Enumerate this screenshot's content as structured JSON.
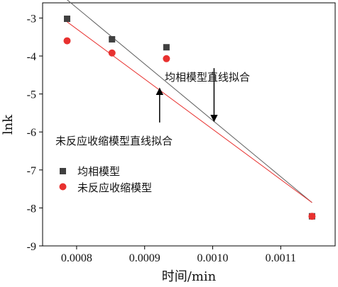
{
  "chart_data": {
    "type": "scatter",
    "xlabel": "时间/min",
    "ylabel": "lnk",
    "xlim": [
      0.00075,
      0.00118
    ],
    "ylim": [
      -9,
      -2.6
    ],
    "xticks": [
      0.0008,
      0.0009,
      0.001,
      0.0011
    ],
    "xtick_labels": [
      "0.0008",
      "0.0009",
      "0.0010",
      "0.0011"
    ],
    "yticks": [
      -9,
      -8,
      -7,
      -6,
      -5,
      -4,
      -3
    ],
    "ytick_labels": [
      "-9",
      "-8",
      "-7",
      "-6",
      "-5",
      "-4",
      "-3"
    ],
    "grid": false,
    "legend_position": "lower-left",
    "series": [
      {
        "name": "均相模型",
        "marker": "square",
        "color": "#404040",
        "x": [
          0.000786,
          0.000852,
          0.000932,
          0.001146
        ],
        "y": [
          -3.02,
          -3.56,
          -3.77,
          -8.22
        ]
      },
      {
        "name": "未反应收缩模型",
        "marker": "circle",
        "color": "#e8312f",
        "x": [
          0.000786,
          0.000852,
          0.000932,
          0.001146
        ],
        "y": [
          -3.6,
          -3.92,
          -4.07,
          -8.22
        ]
      }
    ],
    "fit_lines": [
      {
        "series": "均相模型",
        "color": "#606060",
        "x": [
          0.000786,
          0.001146
        ],
        "y": [
          -2.52,
          -7.86
        ]
      },
      {
        "series": "未反应收缩模型",
        "color": "#e8312f",
        "x": [
          0.000786,
          0.001146
        ],
        "y": [
          -3.1,
          -7.86
        ]
      }
    ],
    "annotations": [
      {
        "text": "均相模型直线拟合",
        "arrow_x": 0.001002,
        "arrow_y_from": -4.32,
        "arrow_y_to": -5.72
      },
      {
        "text": "未反应收缩模型直线拟合",
        "arrow_x": 0.000922,
        "arrow_y_from": -5.75,
        "arrow_y_to": -4.85
      }
    ]
  }
}
